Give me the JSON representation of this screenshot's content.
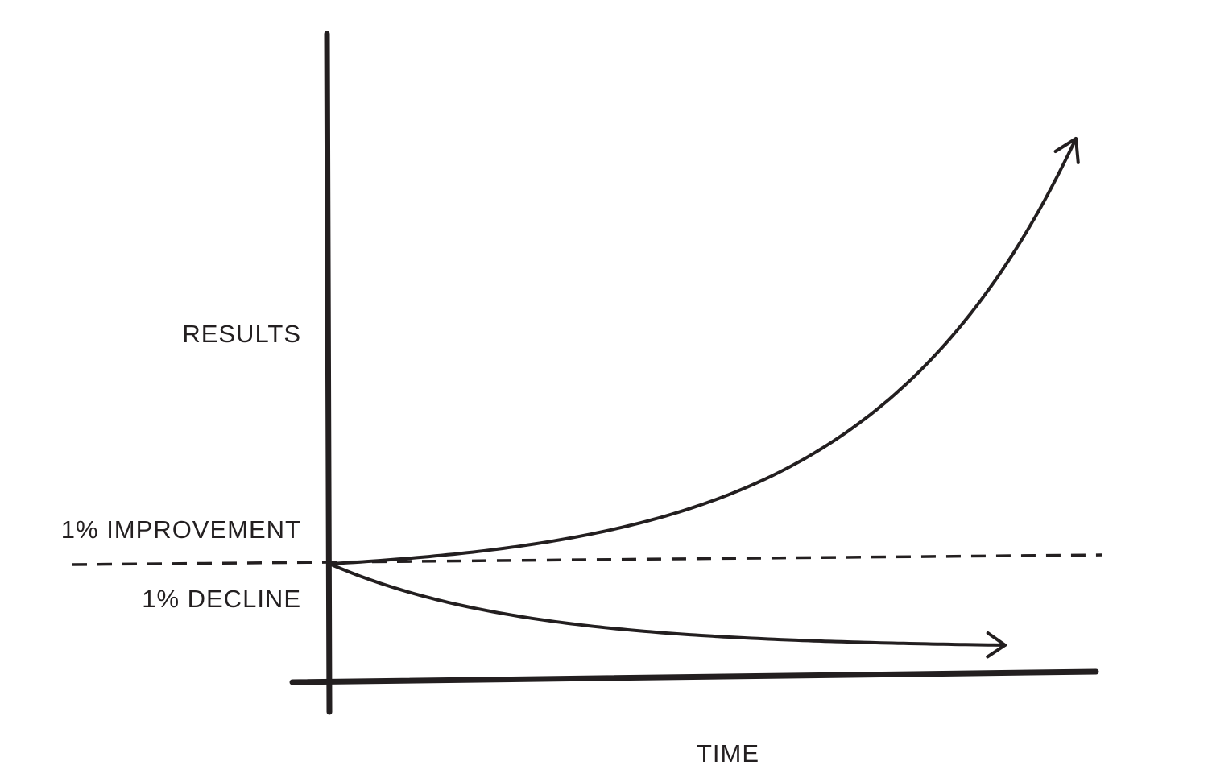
{
  "chart_data": {
    "type": "line",
    "title": "",
    "xlabel": "TIME",
    "ylabel": "RESULTS",
    "grid": false,
    "legend": "none",
    "baseline": {
      "style": "dashed",
      "y": 1
    },
    "series": [
      {
        "name": "1% IMPROVEMENT",
        "x": [
          0,
          365
        ],
        "y": [
          1,
          37.78
        ],
        "kind": "exponential-growth",
        "ends_with_arrow": true
      },
      {
        "name": "1% DECLINE",
        "x": [
          0,
          365
        ],
        "y": [
          1,
          0.03
        ],
        "kind": "exponential-decay",
        "ends_with_arrow": true
      }
    ]
  },
  "colors": {
    "ink": "#231f20",
    "background": "#ffffff"
  }
}
